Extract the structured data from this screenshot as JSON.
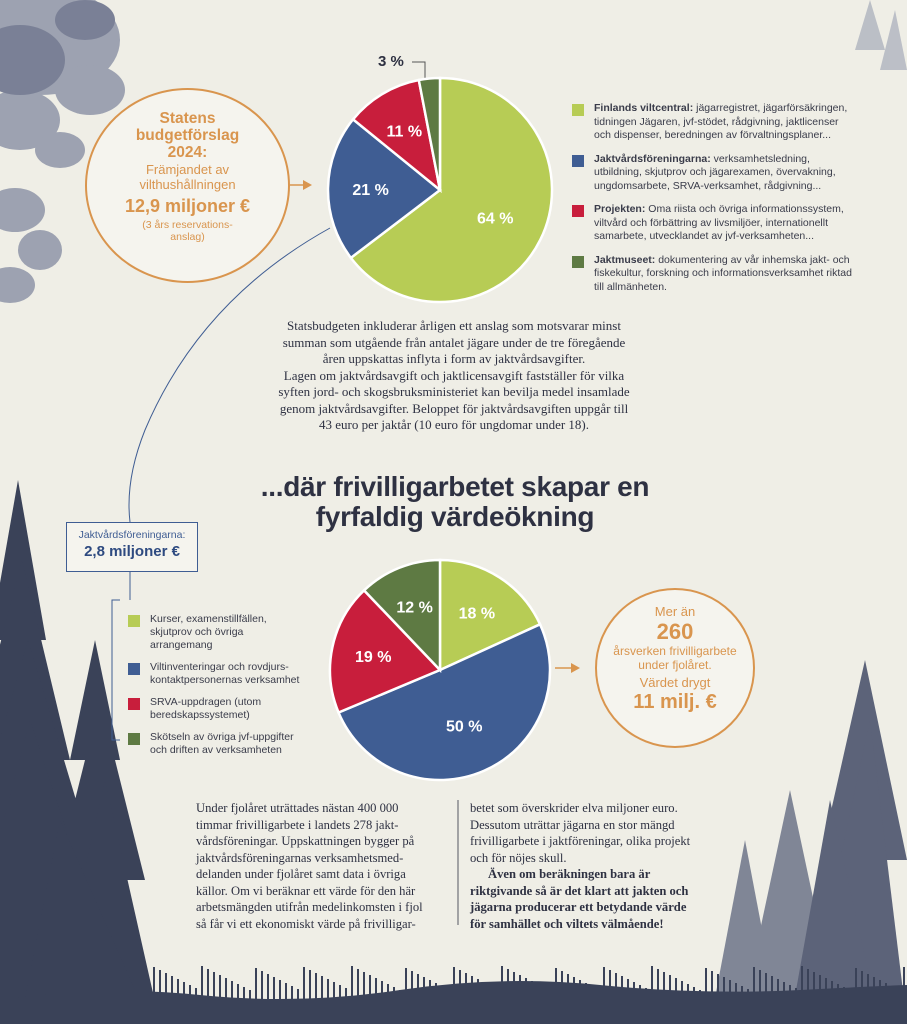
{
  "colors": {
    "green": "#b7cc55",
    "blue": "#3f5d93",
    "red": "#c81e3c",
    "darkgreen": "#5e7a43",
    "orange": "#d9954e",
    "navy": "#2e4a80"
  },
  "budget": {
    "title_line1": "Statens",
    "title_line2": "budgetförslag",
    "title_line3": "2024:",
    "purpose_line1": "Främjandet av",
    "purpose_line2": "vilthushållningen",
    "amount": "12,9 miljoner €",
    "note_line1": "(3 års reservations-",
    "note_line2": "anslag)"
  },
  "legend1": [
    {
      "name": "Finlands viltcentral:",
      "text": " jägarregistret, jägarförsäkringen, tidningen Jägaren, jvf-stödet, rådgivning, jaktlicenser och dispenser, beredningen av förvaltningsplaner..."
    },
    {
      "name": "Jaktvårdsföreningarna:",
      "text": " verksamhetsledning, utbildning, skjutprov och jägarexamen, övervakning, ungdomsarbete, SRVA-verksamhet, rådgivning..."
    },
    {
      "name": "Projekten:",
      "text": " Oma riista och övriga informationssystem, viltvård och förbättring av livsmiljöer, internationellt samarbete, utvecklandet av jvf-verksamheten..."
    },
    {
      "name": "Jaktmuseet:",
      "text": " dokumentering av vår inhemska jakt- och fiskekultur, forskning och informationsverksamhet riktad till allmänheten."
    }
  ],
  "paragraph1": [
    "Statsbudgeten inkluderar årligen ett anslag som motsvarar minst",
    "summan som utgående från antalet jägare under de tre föregående",
    "åren uppskattas inflyta i form av jaktvårdsavgifter.",
    "Lagen om jaktvårdsavgift och jaktlicensavgift fastställer för vilka",
    "syften jord- och skogsbruksministeriet kan bevilja medel insamlade",
    "genom jaktvårdsavgifter. Beloppet för jaktvårdsavgiften uppgår till",
    "43 euro per jaktår (10 euro för ungdomar under 18)."
  ],
  "headline_line1": "...där frivilligarbetet skapar en",
  "headline_line2": "fyrfaldig värdeökning",
  "jvf_box": {
    "label": "Jaktvårdsföreningarna:",
    "amount": "2,8 miljoner €"
  },
  "legend2": [
    "Kurser, examenstillfällen, skjutprov och övriga arrangemang",
    "Viltinventeringar och rovdjurs-kontaktpersonernas verksamhet",
    "SRVA-uppdragen (utom beredskapssystemet)",
    "Skötseln av övriga jvf-uppgifter och driften av verksamheten"
  ],
  "volunteer": {
    "line1": "Mer än",
    "number": "260",
    "line2": "årsverken frivilligarbete",
    "line3": "under fjolåret.",
    "line4": "Värdet drygt",
    "value": "11 milj. €"
  },
  "col1": [
    "Under fjolåret uträttades nästan 400 000",
    "timmar frivilligarbete i landets 278 jakt-",
    "vårdsföreningar. Uppskattningen bygger på",
    "jaktvårdsföreningarnas verksamhetsmed-",
    "delanden under fjolåret samt data i övriga",
    "källor. Om vi beräknar ett värde för den här",
    "arbetsmängden utifrån medelinkomsten i fjol",
    "så får vi ett ekonomiskt värde på frivilligar-"
  ],
  "col2": [
    "betet som överskrider elva miljoner euro.",
    "Dessutom uträttar jägarna en stor mängd",
    "frivilligarbete i jaktföreningar, olika projekt",
    "och för nöjes skull."
  ],
  "col2_bold": [
    "Även om beräkningen bara är",
    "riktgivande så är det klart att jakten och",
    "jägarna producerar ett betydande värde",
    "för samhället och viltets välmående!"
  ],
  "chart_data": [
    {
      "type": "pie",
      "categories": [
        "Finlands viltcentral",
        "Jaktvårdsföreningarna",
        "Projekten",
        "Jaktmuseet"
      ],
      "values": [
        64,
        21,
        11,
        3
      ],
      "labels": [
        "64 %",
        "21 %",
        "11 %",
        "3 %"
      ],
      "colors": [
        "#b7cc55",
        "#3f5d93",
        "#c81e3c",
        "#5e7a43"
      ],
      "start_angle_deg": 0,
      "direction": "clockwise"
    },
    {
      "type": "pie",
      "categories": [
        "Kurser, examenstillfällen, skjutprov och övriga arrangemang",
        "Viltinventeringar och rovdjurs-kontaktpersonernas verksamhet",
        "SRVA-uppdragen (utom beredskapssystemet)",
        "Skötseln av övriga jvf-uppgifter och driften av verksamheten"
      ],
      "values": [
        18,
        50,
        19,
        12
      ],
      "labels": [
        "18 %",
        "50 %",
        "19 %",
        "12 %"
      ],
      "colors": [
        "#b7cc55",
        "#3f5d93",
        "#c81e3c",
        "#5e7a43"
      ],
      "start_angle_deg": 0,
      "direction": "clockwise"
    }
  ]
}
